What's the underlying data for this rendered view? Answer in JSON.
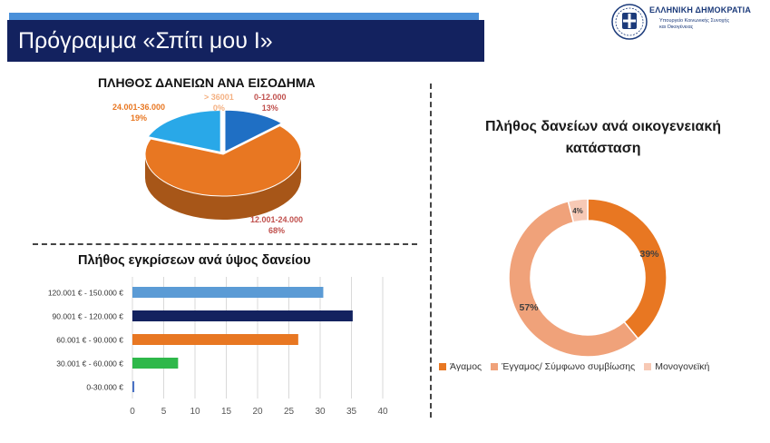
{
  "header": {
    "title": "Πρόγραμμα «Σπίτι μου Ι»"
  },
  "logo": {
    "title": "ΕΛΛΗΝΙΚΗ ΔΗΜΟΚΡΑΤΙΑ",
    "line1": "Υπουργείο Κοινωνικής Συνοχής",
    "line2": "και Οικογένειας"
  },
  "colors": {
    "orange": "#e87722",
    "dark_blue": "#13225f",
    "light_blue": "#4a90d9",
    "green": "#2eb84a",
    "peach": "#f0a27a",
    "light_pink": "#f7c9b5"
  },
  "chart_data": [
    {
      "type": "pie",
      "title": "ΠΛΗΘΟΣ ΔΑΝΕΙΩΝ ΑΝΑ ΕΙΣΟΔΗΜΑ",
      "slices": [
        {
          "label": "0-12.000",
          "value": 13,
          "pct_label": "13%",
          "color": "#1f6fc4",
          "label_color": "#c0504d"
        },
        {
          "label": "12.001-24.000",
          "value": 68,
          "pct_label": "68%",
          "color": "#e87722",
          "label_color": "#c0504d"
        },
        {
          "label": "24.001-36.000",
          "value": 19,
          "pct_label": "19%",
          "color": "#29a8e8",
          "label_color": "#e87722"
        },
        {
          "label": "> 36001",
          "value": 0,
          "pct_label": "0%",
          "color": "#f4b183",
          "label_color": "#f4b183"
        }
      ]
    },
    {
      "type": "bar",
      "orientation": "horizontal",
      "title": "Πλήθος εγκρίσεων ανά ύψος δανείου",
      "categories": [
        "120.001 € - 150.000 €",
        "90.001 € - 120.000 €",
        "60.001 € - 90.000 €",
        "30.001 € - 60.000 €",
        "0-30.000 €"
      ],
      "values": [
        30.5,
        35.2,
        26.5,
        7.3,
        0.3
      ],
      "colors": [
        "#5b9bd5",
        "#13225f",
        "#e87722",
        "#2eb84a",
        "#4a72c4"
      ],
      "xlim": [
        0,
        40
      ],
      "xticks": [
        "0",
        "5",
        "10",
        "15",
        "20",
        "25",
        "30",
        "35",
        "40"
      ],
      "grid": true
    },
    {
      "type": "pie",
      "donut": true,
      "title": "Πλήθος δανείων ανά οικογενειακή κατάσταση",
      "slices": [
        {
          "label": "Άγαμος",
          "value": 39,
          "pct_label": "39%",
          "color": "#e87722"
        },
        {
          "label": "Έγγαμος/ Σύμφωνο συμβίωσης",
          "value": 57,
          "pct_label": "57%",
          "color": "#f0a27a"
        },
        {
          "label": "Μονογονεϊκή",
          "value": 4,
          "pct_label": "4%",
          "color": "#f7c9b5"
        }
      ],
      "legend": "bottom"
    }
  ]
}
